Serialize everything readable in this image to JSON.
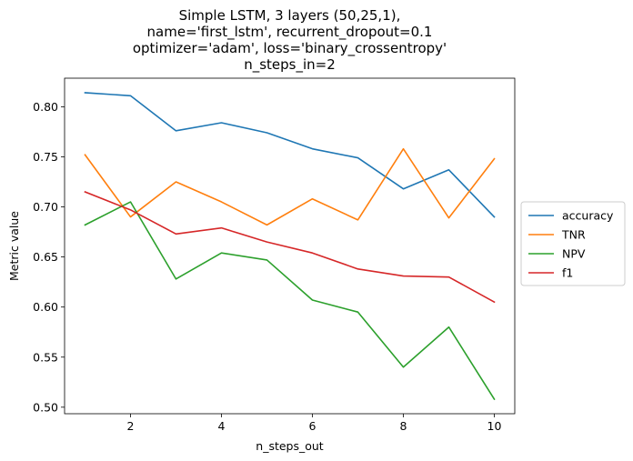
{
  "chart_data": {
    "type": "line",
    "title_lines": [
      "Simple LSTM, 3 layers (50,25,1),",
      "name='first_lstm', recurrent_dropout=0.1",
      "optimizer='adam', loss='binary_crossentropy'",
      "n_steps_in=2"
    ],
    "xlabel": "n_steps_out",
    "ylabel": "Metric value",
    "x": [
      1,
      2,
      3,
      4,
      5,
      6,
      7,
      8,
      9,
      10
    ],
    "xlim": [
      0.55,
      10.45
    ],
    "ylim": [
      0.4935,
      0.8285
    ],
    "xticks": [
      2,
      4,
      6,
      8,
      10
    ],
    "yticks": [
      0.5,
      0.55,
      0.6,
      0.65,
      0.7,
      0.75,
      0.8
    ],
    "legend_position": "outside-right",
    "grid": false,
    "series": [
      {
        "name": "accuracy",
        "color": "#1f77b4",
        "values": [
          0.814,
          0.811,
          0.776,
          0.784,
          0.774,
          0.758,
          0.749,
          0.718,
          0.737,
          0.69
        ]
      },
      {
        "name": "TNR",
        "color": "#ff7f0e",
        "values": [
          0.752,
          0.69,
          0.725,
          0.705,
          0.682,
          0.708,
          0.687,
          0.758,
          0.689,
          0.748
        ]
      },
      {
        "name": "NPV",
        "color": "#2ca02c",
        "values": [
          0.682,
          0.705,
          0.628,
          0.654,
          0.647,
          0.607,
          0.595,
          0.54,
          0.58,
          0.508
        ]
      },
      {
        "name": "f1",
        "color": "#d62728",
        "values": [
          0.715,
          0.697,
          0.673,
          0.679,
          0.665,
          0.654,
          0.638,
          0.631,
          0.63,
          0.605
        ]
      }
    ]
  }
}
